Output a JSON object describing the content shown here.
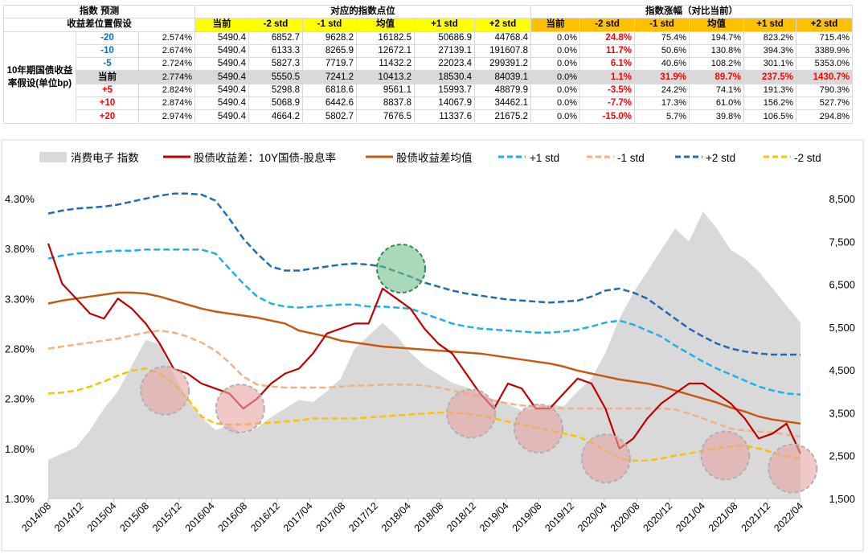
{
  "table": {
    "headers": {
      "index_forecast": "指数 预测",
      "spread_assumption": "收益差位置假设",
      "points_group": "对应的指数点位",
      "change_group": "指数涨幅（对比当前）",
      "columns": [
        "当前",
        "-2 std",
        "-1 std",
        "均值",
        "+1 std",
        "+2 std"
      ]
    },
    "side_label": "10年期国债收益率假设(单位bp)",
    "rows": [
      {
        "shift": "-20",
        "yield": "2.574%",
        "points": [
          "5490.4",
          "6852.7",
          "9628.2",
          "16182.5",
          "50686.9",
          "44768.4"
        ],
        "changes": [
          "0.0%",
          "24.8%",
          "75.4%",
          "194.7%",
          "823.2%",
          "715.4%"
        ]
      },
      {
        "shift": "-10",
        "yield": "2.674%",
        "points": [
          "5490.4",
          "6133.3",
          "8265.9",
          "12672.1",
          "27139.1",
          "191607.8"
        ],
        "changes": [
          "0.0%",
          "11.7%",
          "50.6%",
          "130.8%",
          "394.3%",
          "3389.9%"
        ]
      },
      {
        "shift": "-5",
        "yield": "2.724%",
        "points": [
          "5490.4",
          "5827.3",
          "7719.7",
          "11432.2",
          "22023.4",
          "299391.2"
        ],
        "changes": [
          "0.0%",
          "6.1%",
          "40.6%",
          "108.2%",
          "301.1%",
          "5353.0%"
        ]
      },
      {
        "shift": "当前",
        "yield": "2.774%",
        "points": [
          "5490.4",
          "5550.5",
          "7241.2",
          "10413.2",
          "18530.4",
          "84039.1"
        ],
        "changes": [
          "0.0%",
          "1.1%",
          "31.9%",
          "89.7%",
          "237.5%",
          "1430.7%"
        ]
      },
      {
        "shift": "+5",
        "yield": "2.824%",
        "points": [
          "5490.4",
          "5298.8",
          "6818.6",
          "9561.1",
          "15993.7",
          "48879.9"
        ],
        "changes": [
          "0.0%",
          "-3.5%",
          "24.2%",
          "74.1%",
          "191.3%",
          "790.3%"
        ]
      },
      {
        "shift": "+10",
        "yield": "2.874%",
        "points": [
          "5490.4",
          "5068.9",
          "6442.6",
          "8837.8",
          "14067.9",
          "34462.1"
        ],
        "changes": [
          "0.0%",
          "-7.7%",
          "17.3%",
          "61.0%",
          "156.2%",
          "527.7%"
        ]
      },
      {
        "shift": "+20",
        "yield": "2.974%",
        "points": [
          "5490.4",
          "4664.2",
          "5802.7",
          "7676.5",
          "11337.6",
          "21675.2"
        ],
        "changes": [
          "0.0%",
          "-15.0%",
          "5.7%",
          "39.8%",
          "106.5%",
          "294.8%"
        ]
      }
    ]
  },
  "chart_data": {
    "type": "line",
    "legend": [
      "消费电子 指数",
      "股债收益差：10Y国债-股息率",
      "股债收益差均值",
      "+1 std",
      "-1 std",
      "+2 std",
      "-2 std"
    ],
    "colors": {
      "index": "#d9d9d9",
      "spread": "#c00000",
      "mean": "#c55a11",
      "p1": "#1fb0e6",
      "m1": "#f4b183",
      "p2": "#1f6bb5",
      "m2": "#ffc000",
      "green": "#70c08a",
      "pink": "#e8a3a3"
    },
    "x_labels": [
      "2014/08",
      "2014/12",
      "2015/04",
      "2015/08",
      "2015/12",
      "2016/04",
      "2016/08",
      "2016/12",
      "2017/04",
      "2017/08",
      "2017/12",
      "2018/04",
      "2018/08",
      "2018/12",
      "2019/04",
      "2019/08",
      "2019/12",
      "2020/04",
      "2020/08",
      "2020/12",
      "2021/04",
      "2021/08",
      "2021/12",
      "2022/04"
    ],
    "y_left_ticks": [
      "1.30%",
      "1.80%",
      "2.30%",
      "2.80%",
      "3.30%",
      "3.80%",
      "4.30%"
    ],
    "y_left_range": [
      1.3,
      4.3
    ],
    "y_right_ticks": [
      "1,500",
      "2,500",
      "3,500",
      "4,500",
      "5,500",
      "6,500",
      "7,500",
      "8,500"
    ],
    "y_right_range": [
      1500,
      8500
    ],
    "index_values": [
      2400,
      2550,
      2700,
      3100,
      3600,
      4000,
      4600,
      5200,
      5100,
      4400,
      3800,
      3400,
      3100,
      3200,
      3000,
      3150,
      3400,
      3600,
      3800,
      3750,
      4000,
      4300,
      5000,
      5300,
      5600,
      5300,
      4900,
      4600,
      4400,
      4200,
      4100,
      3950,
      3800,
      3700,
      3550,
      3600,
      3700,
      3650,
      4000,
      4300,
      4900,
      5700,
      6300,
      6800,
      7300,
      7800,
      7500,
      8200,
      7800,
      7300,
      7100,
      6800,
      6400,
      6000,
      5600
    ],
    "spread_values": [
      3.85,
      3.45,
      3.3,
      3.15,
      3.1,
      3.3,
      3.2,
      3.05,
      2.85,
      2.6,
      2.55,
      2.45,
      2.4,
      2.35,
      2.2,
      2.3,
      2.45,
      2.55,
      2.6,
      2.75,
      2.95,
      3.0,
      3.05,
      3.05,
      3.4,
      3.3,
      3.2,
      3.0,
      2.85,
      2.75,
      2.55,
      2.35,
      2.2,
      2.45,
      2.4,
      2.2,
      2.2,
      2.35,
      2.5,
      2.45,
      2.2,
      1.8,
      1.9,
      2.1,
      2.25,
      2.35,
      2.45,
      2.45,
      2.35,
      2.25,
      2.1,
      1.9,
      1.95,
      2.05,
      1.75
    ],
    "mean_values": [
      3.25,
      3.28,
      3.3,
      3.32,
      3.34,
      3.36,
      3.36,
      3.35,
      3.32,
      3.28,
      3.24,
      3.2,
      3.17,
      3.15,
      3.13,
      3.11,
      3.08,
      3.05,
      2.98,
      2.95,
      2.92,
      2.88,
      2.86,
      2.84,
      2.82,
      2.81,
      2.8,
      2.79,
      2.78,
      2.77,
      2.76,
      2.75,
      2.73,
      2.71,
      2.69,
      2.67,
      2.65,
      2.62,
      2.58,
      2.55,
      2.52,
      2.49,
      2.47,
      2.45,
      2.42,
      2.38,
      2.34,
      2.3,
      2.26,
      2.21,
      2.17,
      2.12,
      2.09,
      2.07,
      2.05
    ],
    "p1_values": [
      3.7,
      3.73,
      3.75,
      3.76,
      3.77,
      3.78,
      3.78,
      3.79,
      3.79,
      3.79,
      3.79,
      3.79,
      3.75,
      3.6,
      3.45,
      3.32,
      3.25,
      3.22,
      3.21,
      3.22,
      3.23,
      3.24,
      3.24,
      3.22,
      3.22,
      3.21,
      3.2,
      3.15,
      3.1,
      3.05,
      3.02,
      3.0,
      2.99,
      2.98,
      2.97,
      2.96,
      2.96,
      2.97,
      2.99,
      3.02,
      3.06,
      3.08,
      3.04,
      2.98,
      2.92,
      2.83,
      2.75,
      2.67,
      2.6,
      2.54,
      2.48,
      2.42,
      2.38,
      2.35,
      2.34
    ],
    "m1_values": [
      2.8,
      2.82,
      2.84,
      2.86,
      2.88,
      2.9,
      2.93,
      2.96,
      2.98,
      2.96,
      2.92,
      2.86,
      2.78,
      2.66,
      2.52,
      2.44,
      2.42,
      2.41,
      2.41,
      2.41,
      2.41,
      2.42,
      2.43,
      2.43,
      2.44,
      2.44,
      2.44,
      2.43,
      2.41,
      2.38,
      2.35,
      2.32,
      2.28,
      2.25,
      2.23,
      2.22,
      2.21,
      2.2,
      2.2,
      2.2,
      2.2,
      2.2,
      2.2,
      2.2,
      2.2,
      2.19,
      2.15,
      2.1,
      2.05,
      2.0,
      1.98,
      1.97,
      1.96,
      1.94,
      1.92
    ],
    "p2_values": [
      4.15,
      4.18,
      4.2,
      4.21,
      4.22,
      4.24,
      4.27,
      4.3,
      4.33,
      4.35,
      4.35,
      4.34,
      4.28,
      4.1,
      3.9,
      3.75,
      3.62,
      3.58,
      3.58,
      3.6,
      3.62,
      3.64,
      3.65,
      3.64,
      3.62,
      3.57,
      3.52,
      3.46,
      3.42,
      3.38,
      3.35,
      3.33,
      3.31,
      3.29,
      3.28,
      3.27,
      3.26,
      3.27,
      3.28,
      3.32,
      3.38,
      3.4,
      3.36,
      3.3,
      3.2,
      3.1,
      3.0,
      2.92,
      2.85,
      2.8,
      2.77,
      2.75,
      2.74,
      2.74,
      2.74
    ],
    "m2_values": [
      2.35,
      2.36,
      2.38,
      2.42,
      2.47,
      2.53,
      2.58,
      2.6,
      2.55,
      2.45,
      2.3,
      2.12,
      2.05,
      2.04,
      2.04,
      2.05,
      2.06,
      2.07,
      2.08,
      2.1,
      2.1,
      2.1,
      2.1,
      2.11,
      2.12,
      2.13,
      2.14,
      2.15,
      2.16,
      2.16,
      2.15,
      2.13,
      2.1,
      2.07,
      2.04,
      2.01,
      1.98,
      1.95,
      1.92,
      1.86,
      1.78,
      1.7,
      1.68,
      1.68,
      1.7,
      1.73,
      1.75,
      1.78,
      1.8,
      1.82,
      1.83,
      1.8,
      1.76,
      1.72,
      1.7
    ],
    "highlight_circles": [
      {
        "color": "green",
        "date_index": 13.6,
        "value": 3.6
      },
      {
        "color": "pink",
        "date_index": 4.5,
        "value": 2.38
      },
      {
        "color": "pink",
        "date_index": 7.4,
        "value": 2.2
      },
      {
        "color": "pink",
        "date_index": 16.3,
        "value": 2.15
      },
      {
        "color": "pink",
        "date_index": 18.9,
        "value": 2.0
      },
      {
        "color": "pink",
        "date_index": 21.5,
        "value": 1.7
      },
      {
        "color": "pink",
        "date_index": 26.1,
        "value": 1.73
      },
      {
        "color": "pink",
        "date_index": 28.7,
        "value": 1.6
      }
    ],
    "circle_date_scale": 29.0
  }
}
